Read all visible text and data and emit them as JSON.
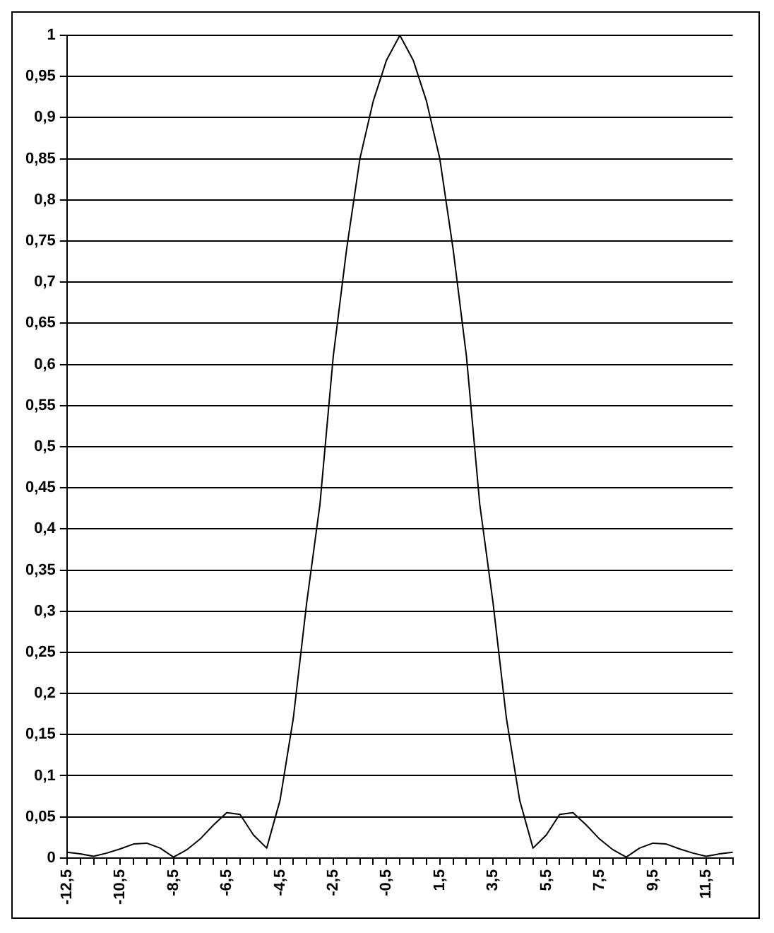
{
  "chart_data": {
    "type": "line",
    "categories": [
      "-12,5",
      null,
      null,
      null,
      "-10,5",
      null,
      null,
      null,
      "-8,5",
      null,
      null,
      null,
      "-6,5",
      null,
      null,
      null,
      "-4,5",
      null,
      null,
      null,
      "-2,5",
      null,
      null,
      null,
      "-0,5",
      null,
      null,
      null,
      "1,5",
      null,
      null,
      null,
      "3,5",
      null,
      null,
      null,
      "5,5",
      null,
      null,
      null,
      "7,5",
      null,
      null,
      null,
      "9,5",
      null,
      null,
      null,
      "11,5",
      null,
      null
    ],
    "series": [
      {
        "color": "#000000",
        "values": [
          0.007,
          0.005,
          0.002,
          0.006,
          0.011,
          0.017,
          0.018,
          0.012,
          0.001,
          0.01,
          0.023,
          0.04,
          0.055,
          0.053,
          0.028,
          0.012,
          0.07,
          0.17,
          0.31,
          0.43,
          0.61,
          0.74,
          0.85,
          0.92,
          0.97,
          1.0,
          0.97,
          0.92,
          0.85,
          0.74,
          0.61,
          0.43,
          0.31,
          0.17,
          0.07,
          0.012,
          0.028,
          0.053,
          0.055,
          0.04,
          0.023,
          0.01,
          0.001,
          0.012,
          0.018,
          0.017,
          0.011,
          0.006,
          0.002,
          0.005,
          0.007
        ]
      }
    ],
    "ylim": [
      0,
      1
    ],
    "yticks": [
      0,
      {
        "value": 0.05,
        "label": "0,05"
      },
      {
        "value": 0.1,
        "label": "0,1"
      },
      {
        "value": 0.15,
        "label": "0,15"
      },
      {
        "value": 0.2,
        "label": "0,2"
      },
      {
        "value": 0.25,
        "label": "0,25"
      },
      {
        "value": 0.3,
        "label": "0,3"
      },
      {
        "value": 0.35,
        "label": "0,35"
      },
      {
        "value": 0.4,
        "label": "0,4"
      },
      {
        "value": 0.45,
        "label": "0,45"
      },
      {
        "value": 0.5,
        "label": "0,5"
      },
      {
        "value": 0.55,
        "label": "0,55"
      },
      {
        "value": 0.6,
        "label": "0,6"
      },
      {
        "value": 0.65,
        "label": "0,65"
      },
      {
        "value": 0.7,
        "label": "0,7"
      },
      {
        "value": 0.75,
        "label": "0,75"
      },
      {
        "value": 0.8,
        "label": "0,8"
      },
      {
        "value": 0.85,
        "label": "0,85"
      },
      {
        "value": 0.9,
        "label": "0,9"
      },
      {
        "value": 0.95,
        "label": "0,95"
      },
      1
    ],
    "grid": "y",
    "legend": false,
    "marker": "none",
    "line_style": "solid"
  }
}
